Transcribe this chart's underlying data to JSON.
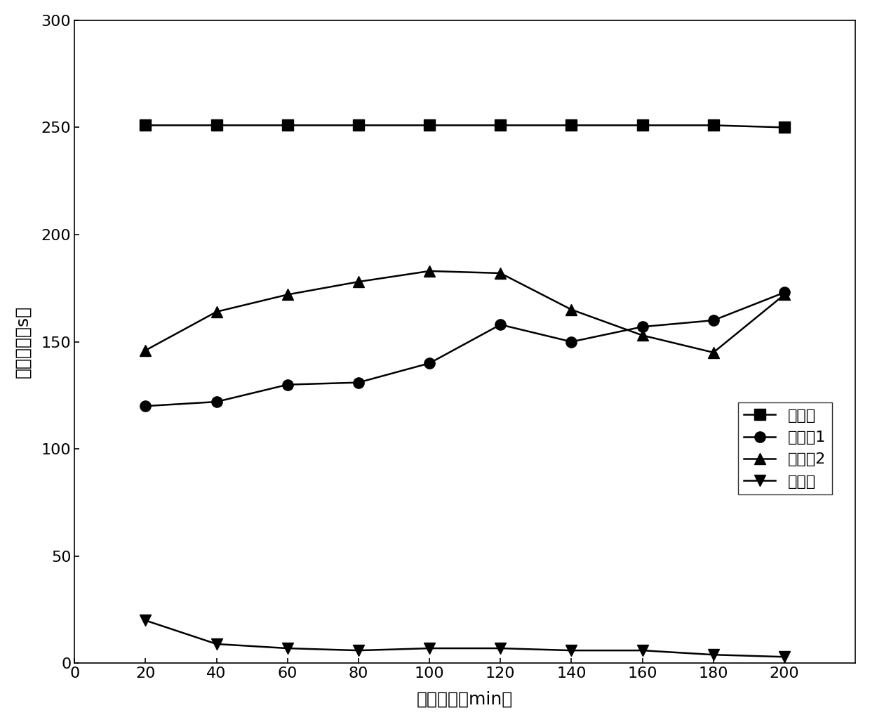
{
  "x": [
    20,
    40,
    60,
    80,
    100,
    120,
    140,
    160,
    180,
    200
  ],
  "kongbai_zu": [
    251,
    251,
    251,
    251,
    251,
    251,
    251,
    251,
    251,
    250
  ],
  "shiyan_zu1": [
    120,
    122,
    130,
    131,
    140,
    158,
    150,
    157,
    160,
    173
  ],
  "shiyan_zu2": [
    146,
    164,
    172,
    178,
    183,
    182,
    165,
    153,
    145,
    172
  ],
  "moxing_zu": [
    20,
    9,
    7,
    6,
    7,
    7,
    6,
    6,
    4,
    3
  ],
  "xlabel": "实验时间（min）",
  "ylabel": "攀附时间（s）",
  "legend_labels": [
    "空白组",
    "实验组1",
    "实验组2",
    "模型组"
  ],
  "xlim": [
    0,
    220
  ],
  "ylim": [
    0,
    300
  ],
  "xticks": [
    0,
    20,
    40,
    60,
    80,
    100,
    120,
    140,
    160,
    180,
    200
  ],
  "yticks": [
    0,
    50,
    100,
    150,
    200,
    250,
    300
  ],
  "line_color": "#000000",
  "bg_color": "#ffffff",
  "label_fontsize": 18,
  "tick_fontsize": 16,
  "legend_fontsize": 16,
  "marker_size": 11,
  "line_width": 1.8
}
